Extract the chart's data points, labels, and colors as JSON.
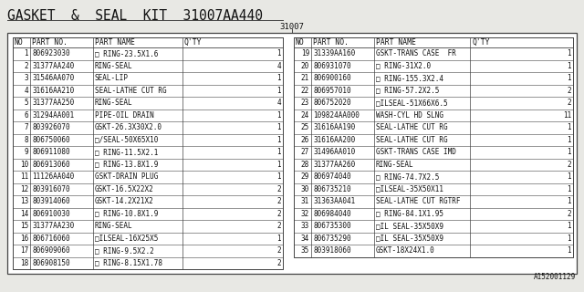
{
  "title": "GASKET  &  SEAL  KIT  31007AA440",
  "part_number_center": "31007",
  "watermark": "A152001129",
  "left_rows": [
    [
      "1",
      "806923030",
      "□ RING-23.5X1.6",
      "1"
    ],
    [
      "2",
      "31377AA240",
      "RING-SEAL",
      "4"
    ],
    [
      "3",
      "31546AA070",
      "SEAL-LIP",
      "1"
    ],
    [
      "4",
      "31616AA210",
      "SEAL-LATHE CUT RG",
      "1"
    ],
    [
      "5",
      "31377AA250",
      "RING-SEAL",
      "4"
    ],
    [
      "6",
      "31294AA001",
      "PIPE-OIL DRAIN",
      "1"
    ],
    [
      "7",
      "803926070",
      "GSKT-26.3X30X2.0",
      "1"
    ],
    [
      "8",
      "806750060",
      "□/SEAL-50X65X10",
      "1"
    ],
    [
      "9",
      "806911080",
      "□ RING-11.5X2.1",
      "1"
    ],
    [
      "10",
      "806913060",
      "□ RING-13.8X1.9",
      "1"
    ],
    [
      "11",
      "11126AA040",
      "GSKT-DRAIN PLUG",
      "1"
    ],
    [
      "12",
      "803916070",
      "GSKT-16.5X22X2",
      "2"
    ],
    [
      "13",
      "803914060",
      "GSKT-14.2X21X2",
      "2"
    ],
    [
      "14",
      "806910030",
      "□ RING-10.8X1.9",
      "2"
    ],
    [
      "15",
      "31377AA230",
      "RING-SEAL",
      "2"
    ],
    [
      "16",
      "806716060",
      "□ILSEAL-16X25X5",
      "1"
    ],
    [
      "17",
      "806909060",
      "□ RING-9.5X2.2",
      "2"
    ],
    [
      "18",
      "806908150",
      "□ RING-8.15X1.78",
      "2"
    ]
  ],
  "right_rows": [
    [
      "19",
      "31339AA160",
      "GSKT-TRANS CASE  FR",
      "1"
    ],
    [
      "20",
      "806931070",
      "□ RING-31X2.0",
      "1"
    ],
    [
      "21",
      "806900160",
      "□ RING-155.3X2.4",
      "1"
    ],
    [
      "22",
      "806957010",
      "□ RING-57.2X2.5",
      "2"
    ],
    [
      "23",
      "806752020",
      "□ILSEAL-51X66X6.5",
      "2"
    ],
    [
      "24",
      "109824AA000",
      "WASH-CYL HD SLNG",
      "11"
    ],
    [
      "25",
      "31616AA190",
      "SEAL-LATHE CUT RG",
      "1"
    ],
    [
      "26",
      "31616AA200",
      "SEAL-LATHE CUT RG",
      "1"
    ],
    [
      "27",
      "31496AA010",
      "GSKT-TRANS CASE IMD",
      "1"
    ],
    [
      "28",
      "31377AA260",
      "RING-SEAL",
      "2"
    ],
    [
      "29",
      "806974040",
      "□ RING-74.7X2.5",
      "1"
    ],
    [
      "30",
      "806735210",
      "□ILSEAL-35X50X11",
      "1"
    ],
    [
      "31",
      "31363AA041",
      "SEAL-LATHE CUT RGTRF",
      "1"
    ],
    [
      "32",
      "806984040",
      "□ RING-84.1X1.95",
      "2"
    ],
    [
      "33",
      "806735300",
      "□IL SEAL-35X50X9",
      "1"
    ],
    [
      "34",
      "806735290",
      "□IL SEAL-35X50X9",
      "1"
    ],
    [
      "35",
      "803918060",
      "GSKT-18X24X1.0",
      "1"
    ]
  ],
  "bg_color": "#e8e8e4",
  "table_bg": "#ffffff",
  "line_color": "#444444",
  "text_color": "#111111",
  "font_size": 5.5,
  "header_font_size": 5.8,
  "title_font_size": 10.5
}
